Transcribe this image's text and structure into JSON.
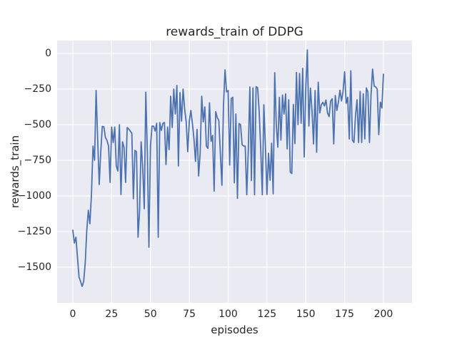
{
  "figure": {
    "title": "rewards_train of DDPG",
    "xlabel": "episodes",
    "ylabel": "rewards_train"
  },
  "chart_data": {
    "type": "line",
    "title": "rewards_train of DDPG",
    "xlabel": "episodes",
    "ylabel": "rewards_train",
    "legend": false,
    "grid": true,
    "x_ticks": [
      0,
      25,
      50,
      75,
      100,
      125,
      150,
      175,
      200
    ],
    "x_tick_labels": [
      "0",
      "25",
      "50",
      "75",
      "100",
      "125",
      "150",
      "175",
      "200"
    ],
    "y_ticks": [
      0,
      -250,
      -500,
      -750,
      -1000,
      -1250,
      -1500
    ],
    "y_tick_labels": [
      "0",
      "−250",
      "−500",
      "−750",
      "−1000",
      "−1250",
      "−1500"
    ],
    "xlim": [
      -10.1,
      218.4
    ],
    "ylim": [
      -1750,
      90
    ],
    "style": {
      "figure_background": "#FFFFFF",
      "axes_background": "#EAEAF2",
      "grid_color": "#FFFFFF",
      "line_color": "#4C72B0",
      "text_color": "#262626",
      "line_width": 1.8
    },
    "series": [
      {
        "name": "rewards_train",
        "x_start": 0,
        "x_step": 1,
        "values": [
          -1240,
          -1330,
          -1290,
          -1430,
          -1570,
          -1600,
          -1635,
          -1600,
          -1470,
          -1240,
          -1100,
          -1195,
          -990,
          -650,
          -750,
          -260,
          -600,
          -920,
          -690,
          -512,
          -515,
          -590,
          -610,
          -650,
          -905,
          -517,
          -625,
          -517,
          -790,
          -825,
          -500,
          -990,
          -620,
          -660,
          -905,
          -520,
          -530,
          -545,
          -560,
          -1020,
          -680,
          -690,
          -1290,
          -1100,
          -620,
          -800,
          -1090,
          -272,
          -700,
          -1360,
          -650,
          -510,
          -510,
          -545,
          -490,
          -1290,
          -485,
          -540,
          -490,
          -485,
          -780,
          -517,
          -675,
          -300,
          -520,
          -250,
          -425,
          -225,
          -790,
          -275,
          -475,
          -250,
          -390,
          -480,
          -690,
          -475,
          -400,
          -490,
          -600,
          -758,
          -533,
          -860,
          -700,
          -300,
          -480,
          -375,
          -650,
          -667,
          -347,
          -617,
          -575,
          -967,
          -408,
          -450,
          -470,
          -700,
          -925,
          -367,
          -115,
          -270,
          -260,
          -783,
          -317,
          -308,
          -908,
          -425,
          -1017,
          -492,
          -500,
          -640,
          -650,
          -650,
          -992,
          -675,
          -235,
          -892,
          -242,
          -992,
          -233,
          -240,
          -408,
          -675,
          -992,
          -360,
          -650,
          -990,
          -700,
          -890,
          -630,
          -985,
          -135,
          -500,
          -658,
          -308,
          -608,
          -292,
          -425,
          -283,
          -670,
          -325,
          -833,
          -842,
          -358,
          -633,
          -133,
          -500,
          -140,
          -490,
          -105,
          -727,
          -240,
          25,
          -510,
          -243,
          -400,
          -635,
          -260,
          -693,
          -202,
          -418,
          -360,
          -343,
          -368,
          -327,
          -418,
          -443,
          -335,
          -318,
          -635,
          -295,
          -400,
          -342,
          -258,
          -333,
          -267,
          -128,
          -350,
          -308,
          -600,
          -122,
          -608,
          -625,
          -440,
          -325,
          -625,
          -267,
          -625,
          -283,
          -600,
          -242,
          -270,
          -625,
          -292,
          -110,
          -228,
          -235,
          -250,
          -570,
          -342,
          -383,
          -145
        ]
      }
    ]
  }
}
